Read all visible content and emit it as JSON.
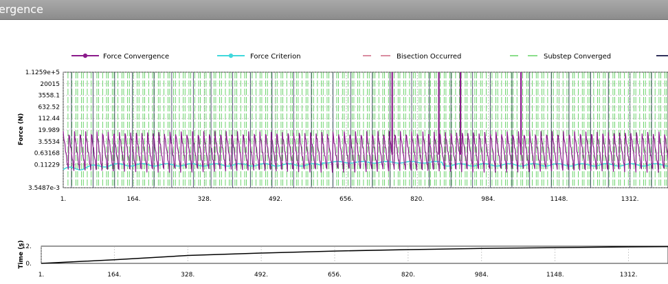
{
  "window": {
    "title": "ergence"
  },
  "chart_data": [
    {
      "type": "line",
      "ylabel": "Force (N)",
      "yscale": "log",
      "ylim": [
        0.0035487,
        112590
      ],
      "xlim": [
        1,
        1400
      ],
      "x_ticks": [
        "1.",
        "164.",
        "328.",
        "492.",
        "656.",
        "820.",
        "984.",
        "1148.",
        "1312."
      ],
      "y_ticks": [
        "1.1259e+5",
        "20015",
        "3558.1",
        "632.52",
        "112.44",
        "19.989",
        "3.5534",
        "0.63168",
        "0.11229",
        "3.5487e-3"
      ],
      "legend": [
        {
          "name": "Force Convergence",
          "color": "#8b1a8b",
          "style": "solid-dot"
        },
        {
          "name": "Force Criterion",
          "color": "#40d8dc",
          "style": "solid-dot"
        },
        {
          "name": "Bisection Occurred",
          "color": "#c04060",
          "style": "dashed"
        },
        {
          "name": "Substep Converged",
          "color": "#3cc83c",
          "style": "dashed"
        },
        {
          "name": "",
          "color": "#30305a",
          "style": "solid"
        }
      ],
      "grid": true,
      "series_summary": {
        "force_convergence_range": [
          0.02,
          30
        ],
        "force_criterion_range": [
          0.03,
          0.3
        ],
        "bisection_spikes_x": [
          762,
          870,
          920,
          1060
        ]
      }
    },
    {
      "type": "line",
      "ylabel": "Time (s)",
      "ylim": [
        0,
        12
      ],
      "y_ticks": [
        "12.",
        "0."
      ],
      "x_ticks": [
        "1.",
        "164.",
        "328.",
        "492.",
        "656.",
        "820.",
        "984.",
        "1148.",
        "1312."
      ],
      "series": [
        {
          "name": "",
          "x": [
            1,
            164,
            328,
            492,
            656,
            820,
            984,
            1148,
            1312,
            1400
          ],
          "values": [
            0,
            2.5,
            5.5,
            7.2,
            8.6,
            9.6,
            10.4,
            11.0,
            11.5,
            11.7
          ]
        }
      ]
    }
  ]
}
